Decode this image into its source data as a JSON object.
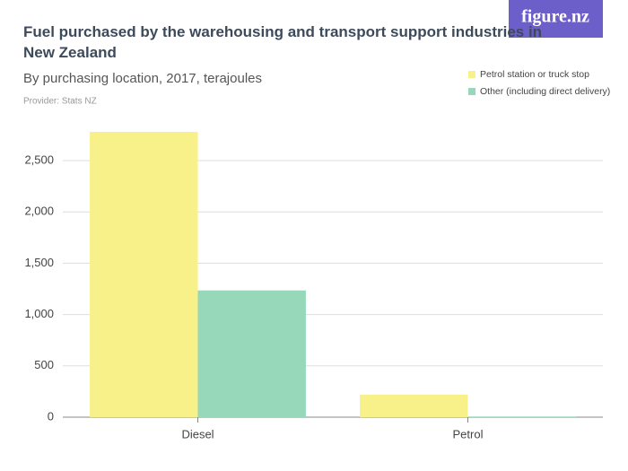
{
  "logo": "figure.nz",
  "chart_data": {
    "type": "bar",
    "title": "Fuel purchased by the warehousing and transport support industries in New Zealand",
    "subtitle": "By purchasing location, 2017, terajoules",
    "provider": "Provider: Stats NZ",
    "categories": [
      "Diesel",
      "Petrol"
    ],
    "series": [
      {
        "name": "Petrol station or truck stop",
        "color": "#f8f18a",
        "values": [
          2780,
          220
        ]
      },
      {
        "name": "Other (including direct delivery)",
        "color": "#96d8b9",
        "values": [
          1235,
          6
        ]
      }
    ],
    "ylim": [
      0,
      2800
    ],
    "yticks": [
      0,
      500,
      {
        "value": 1000,
        "label": "1,000"
      },
      {
        "value": 1500,
        "label": "1,500"
      },
      {
        "value": 2000,
        "label": "2,000"
      },
      {
        "value": 2500,
        "label": "2,500"
      }
    ],
    "grid": true,
    "legend": "top-right"
  }
}
